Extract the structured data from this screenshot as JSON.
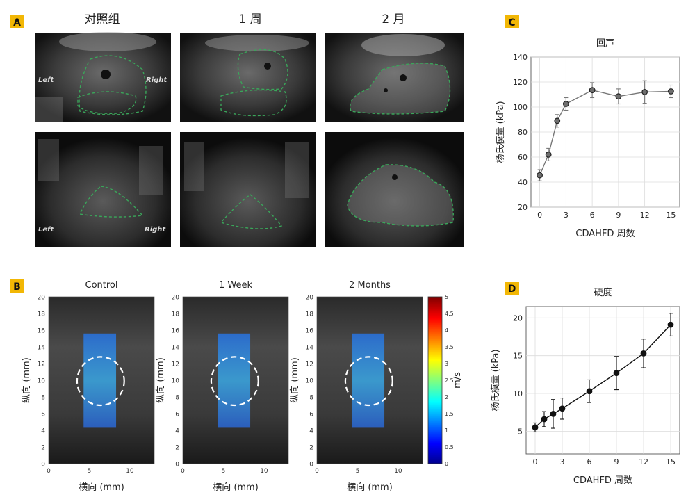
{
  "panel_letters": {
    "a": "A",
    "b": "B",
    "c": "C",
    "d": "D"
  },
  "colors": {
    "accent_badge": "#f2b705",
    "outline": "#3aa65a",
    "roi": "#ffffff",
    "curve_c": "#777777",
    "marker_c": "#6e6e6e",
    "curve_d": "#111111"
  },
  "panel_a": {
    "column_titles": [
      "对照组",
      "1 周",
      "2 月"
    ],
    "side_labels": {
      "left": "Left",
      "right": "Right"
    }
  },
  "panel_b": {
    "titles": [
      "Control",
      "1 Week",
      "2 Months"
    ],
    "xlabel": "横向 (mm)",
    "ylabel": "纵向 (mm)",
    "xticks": [
      "0",
      "5",
      "10"
    ],
    "yticks": [
      "0",
      "2",
      "4",
      "6",
      "8",
      "10",
      "12",
      "14",
      "16",
      "18",
      "20"
    ],
    "colorbar_label": "m/s",
    "colorbar_ticks": [
      "0",
      "0.5",
      "1",
      "1.5",
      "2",
      "2.5",
      "3",
      "3.5",
      "4",
      "4.5",
      "5"
    ]
  },
  "chart_data": [
    {
      "type": "line",
      "title": "回声",
      "xlabel": "CDAHFD 周数",
      "ylabel": "杨氏模量 (kPa)",
      "x": [
        0,
        1,
        2,
        3,
        6,
        9,
        12,
        15
      ],
      "y": [
        45.5,
        62,
        89,
        102.5,
        113.5,
        108.5,
        112,
        112.5
      ],
      "err": [
        4.5,
        5,
        5,
        5,
        6,
        6,
        9,
        5
      ],
      "xticks": [
        0,
        3,
        6,
        9,
        12,
        15
      ],
      "yticks": [
        20,
        40,
        60,
        80,
        100,
        120,
        140
      ],
      "xlim": [
        -1,
        16
      ],
      "ylim": [
        20,
        140
      ],
      "grid": true
    },
    {
      "type": "line",
      "title": "硬度",
      "xlabel": "CDAHFD 周数",
      "ylabel": "杨氏模量 (kPa)",
      "x": [
        0,
        1,
        2,
        3,
        6,
        9,
        12,
        15
      ],
      "y": [
        5.5,
        6.6,
        7.3,
        8,
        10.3,
        12.7,
        15.3,
        19.1
      ],
      "err": [
        0.6,
        1,
        1.9,
        1.4,
        1.5,
        2.2,
        1.9,
        1.5
      ],
      "xticks": [
        0,
        3,
        6,
        9,
        12,
        15
      ],
      "yticks": [
        5,
        10,
        15,
        20
      ],
      "xlim": [
        -1,
        16
      ],
      "ylim": [
        2,
        21.5
      ],
      "grid": true
    }
  ]
}
